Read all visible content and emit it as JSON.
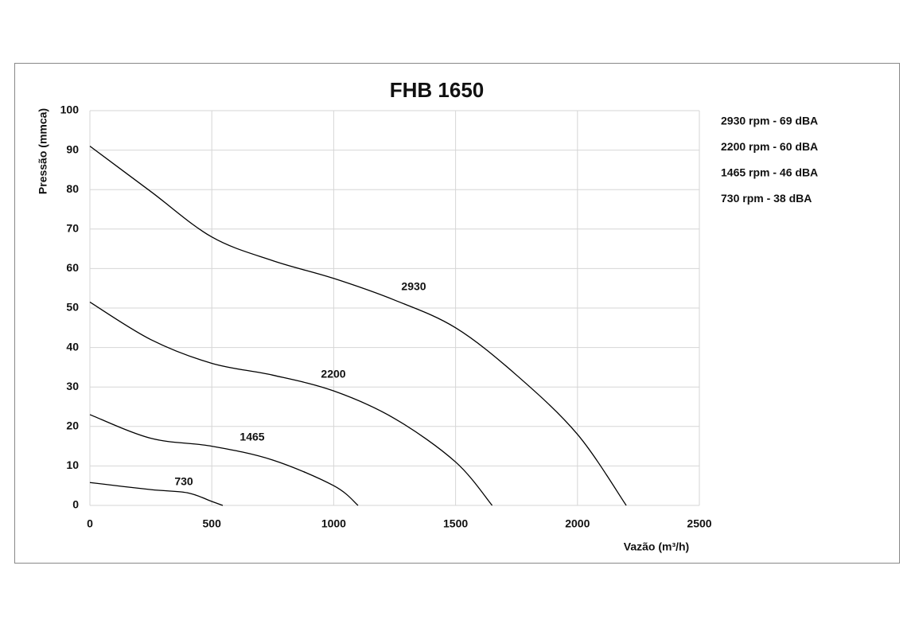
{
  "chart_data": {
    "type": "line",
    "title": "FHB 1650",
    "x_label": "Vazão (m³/h)",
    "y_label": "Pressão  (mmca)",
    "xlim": [
      0,
      2500
    ],
    "xticks": [
      0,
      500,
      1000,
      1500,
      2000,
      2500
    ],
    "ylim": [
      0,
      100
    ],
    "yticks": [
      0,
      10,
      20,
      30,
      40,
      50,
      60,
      70,
      80,
      90,
      100
    ],
    "grid": true,
    "legend": [
      "2930 rpm - 69 dBA",
      "2200 rpm - 60 dBA",
      "1465 rpm - 46 dBA",
      "730 rpm - 38 dBA"
    ],
    "series": [
      {
        "name": "2930",
        "color": "#000000",
        "x": [
          0,
          250,
          500,
          750,
          1000,
          1250,
          1500,
          1750,
          2000,
          2200
        ],
        "values": [
          91,
          79.5,
          68,
          62,
          57.5,
          52,
          45,
          33,
          18,
          0
        ]
      },
      {
        "name": "2200",
        "color": "#000000",
        "x": [
          0,
          250,
          500,
          750,
          1000,
          1250,
          1500,
          1650
        ],
        "values": [
          51.5,
          42,
          36,
          33,
          29,
          22,
          11,
          0
        ]
      },
      {
        "name": "1465",
        "color": "#000000",
        "x": [
          0,
          250,
          500,
          750,
          1000,
          1100
        ],
        "values": [
          23,
          17,
          15,
          11.5,
          5,
          0
        ]
      },
      {
        "name": "730",
        "color": "#000000",
        "x": [
          0,
          250,
          400,
          500,
          545
        ],
        "values": [
          5.8,
          4,
          3.2,
          1,
          0
        ]
      }
    ]
  }
}
